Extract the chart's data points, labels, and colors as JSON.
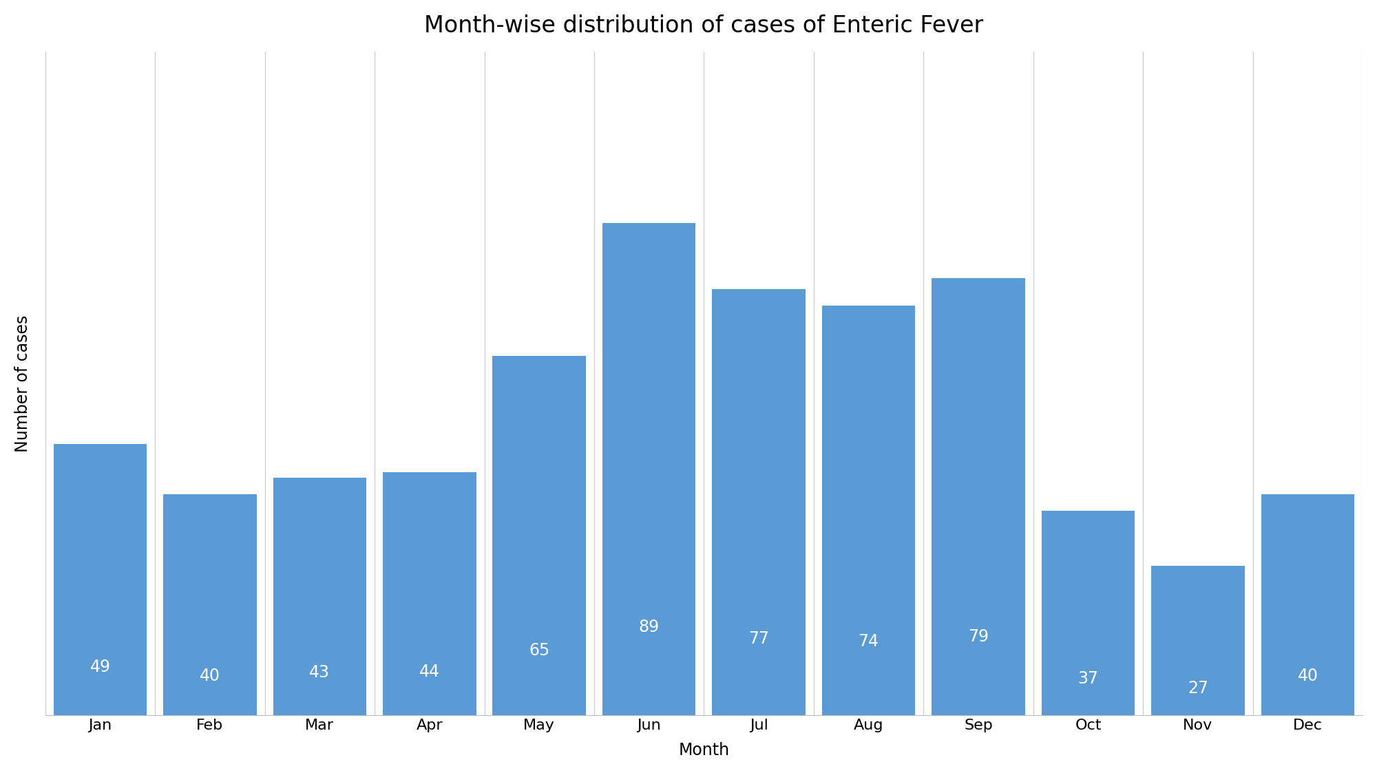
{
  "title": "Month-wise distribution of cases of Enteric Fever",
  "xlabel": "Month",
  "ylabel": "Number of cases",
  "categories": [
    "Jan",
    "Feb",
    "Mar",
    "Apr",
    "May",
    "Jun",
    "Jul",
    "Aug",
    "Sep",
    "Oct",
    "Nov",
    "Dec"
  ],
  "values": [
    49,
    40,
    43,
    44,
    65,
    89,
    77,
    74,
    79,
    37,
    27,
    40
  ],
  "bar_color": "#5b9bd5",
  "text_color": "#ffffff",
  "background_color": "#ffffff",
  "grid_color": "#cccccc",
  "title_fontsize": 24,
  "axis_label_fontsize": 17,
  "tick_fontsize": 16,
  "bar_label_fontsize": 17,
  "ylim": [
    0,
    120
  ],
  "bar_width": 0.85
}
